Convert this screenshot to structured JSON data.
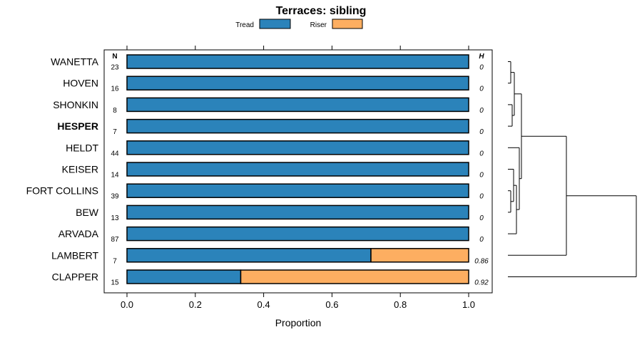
{
  "chart_data": {
    "type": "bar",
    "orientation": "horizontal",
    "stacked": true,
    "title": "Terraces: sibling",
    "xlabel": "Proportion",
    "ylabel": "",
    "xlim": [
      0,
      1
    ],
    "x_ticks": [
      "0.0",
      "0.2",
      "0.4",
      "0.6",
      "0.8",
      "1.0"
    ],
    "legend": {
      "position": "top",
      "entries": [
        "Tread",
        "Riser"
      ]
    },
    "n_header": "N",
    "h_header": "H",
    "categories": [
      "WANETTA",
      "HOVEN",
      "SHONKIN",
      "HESPER",
      "HELDT",
      "KEISER",
      "FORT COLLINS",
      "BEW",
      "ARVADA",
      "LAMBERT",
      "CLAPPER"
    ],
    "highlighted": "HESPER",
    "n": [
      "23",
      "16",
      "8",
      "7",
      "44",
      "14",
      "39",
      "13",
      "87",
      "7",
      "15"
    ],
    "h": [
      "0",
      "0",
      "0",
      "0",
      "0",
      "0",
      "0",
      "0",
      "0",
      "0.86",
      "0.92"
    ],
    "series": [
      {
        "name": "Tread",
        "color": "#2b83ba",
        "values": [
          1,
          1,
          1,
          1,
          1,
          1,
          1,
          1,
          1,
          0.714,
          0.333
        ]
      },
      {
        "name": "Riser",
        "color": "#fdae61",
        "values": [
          0,
          0,
          0,
          0,
          0,
          0,
          0,
          0,
          0,
          0.286,
          0.667
        ]
      }
    ],
    "dendrogram": {
      "merges": [
        {
          "a": "WANETTA",
          "b": "HOVEN",
          "height": 0.02
        },
        {
          "a": "SHONKIN",
          "b": "HESPER",
          "height": 0.03
        },
        {
          "a": "FORT COLLINS",
          "b": "BEW",
          "height": 0.02
        },
        {
          "a": "KEISER",
          "b": "FORT COLLINS+BEW",
          "height": 0.04
        },
        {
          "a": "WANETTA+HOVEN",
          "b": "SHONKIN+HESPER",
          "height": 0.06
        },
        {
          "a": "KEISER+FORT COLLINS+BEW",
          "b": "ARVADA",
          "height": 0.06
        },
        {
          "a": "HELDT",
          "b": "KEISER+FORT COLLINS+BEW+ARVADA",
          "height": 0.08
        },
        {
          "a": "WANETTA+HOVEN+SHONKIN+HESPER",
          "b": "HELDT+KEISER+FORT COLLINS+BEW+ARVADA",
          "height": 0.1
        },
        {
          "a": "CLUSTER-A",
          "b": "LAMBERT",
          "height": 0.4
        },
        {
          "a": "CLUSTER-B",
          "b": "CLAPPER",
          "height": 0.88
        }
      ]
    }
  }
}
